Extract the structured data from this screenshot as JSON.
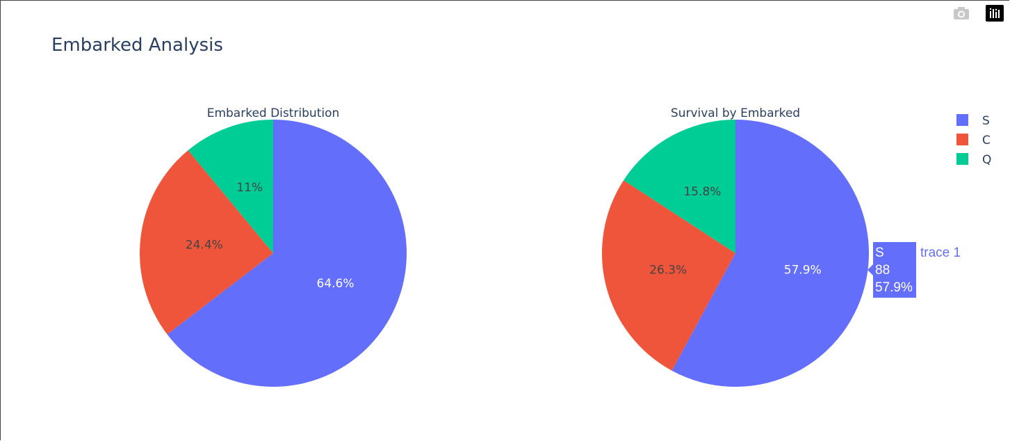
{
  "title": "Embarked Analysis",
  "modebar": {
    "camera_icon": "camera-icon",
    "logo_icon": "plotly-logo-icon"
  },
  "chart_data": [
    {
      "type": "pie",
      "title": "Embarked Distribution",
      "labels": [
        "S",
        "C",
        "Q"
      ],
      "values": [
        64.6,
        24.4,
        11.0
      ],
      "text": [
        "64.6%",
        "24.4%",
        "11%"
      ],
      "colors": [
        "#636efa",
        "#ef553b",
        "#00cc96"
      ]
    },
    {
      "type": "pie",
      "title": "Survival by Embarked",
      "labels": [
        "S",
        "C",
        "Q"
      ],
      "values": [
        57.9,
        26.3,
        15.8
      ],
      "text": [
        "57.9%",
        "26.3%",
        "15.8%"
      ],
      "colors": [
        "#636efa",
        "#ef553b",
        "#00cc96"
      ]
    }
  ],
  "legend": {
    "items": [
      {
        "label": "S",
        "color": "#636efa"
      },
      {
        "label": "C",
        "color": "#ef553b"
      },
      {
        "label": "Q",
        "color": "#00cc96"
      }
    ]
  },
  "hover": {
    "label": "S",
    "count": "88",
    "percent": "57.9%",
    "trace": "trace 1",
    "color": "#636efa"
  }
}
